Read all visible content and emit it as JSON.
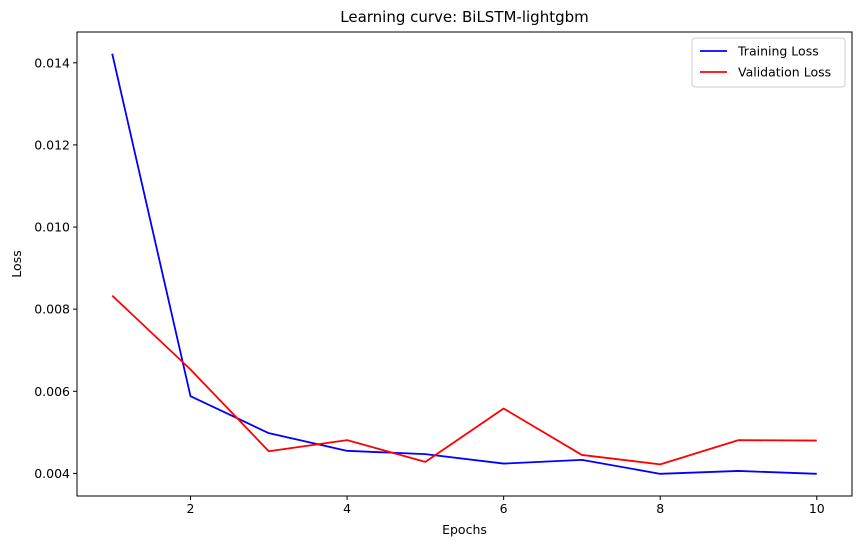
{
  "chart_data": {
    "type": "line",
    "title": "Learning curve: BiLSTM-lightgbm",
    "xlabel": "Epochs",
    "ylabel": "Loss",
    "x": [
      1,
      2,
      3,
      4,
      5,
      6,
      7,
      8,
      9,
      10
    ],
    "xlim": [
      0.55,
      10.45
    ],
    "ylim": [
      0.00345,
      0.01475
    ],
    "xticks": [
      2,
      4,
      6,
      8,
      10
    ],
    "xtick_labels": [
      "2",
      "4",
      "6",
      "8",
      "10"
    ],
    "yticks": [
      0.004,
      0.006,
      0.008,
      0.01,
      0.012,
      0.014
    ],
    "ytick_labels": [
      "0.004",
      "0.006",
      "0.008",
      "0.010",
      "0.012",
      "0.014"
    ],
    "grid": false,
    "legend_position": "top-right",
    "series": [
      {
        "name": "Training Loss",
        "color": "#0000ff",
        "values": [
          0.01422,
          0.00588,
          0.00498,
          0.00455,
          0.00447,
          0.00424,
          0.00433,
          0.00399,
          0.00406,
          0.00399
        ]
      },
      {
        "name": "Validation Loss",
        "color": "#ff0000",
        "values": [
          0.00833,
          0.00653,
          0.00454,
          0.00481,
          0.00428,
          0.00558,
          0.00445,
          0.00422,
          0.00481,
          0.0048
        ]
      }
    ]
  }
}
